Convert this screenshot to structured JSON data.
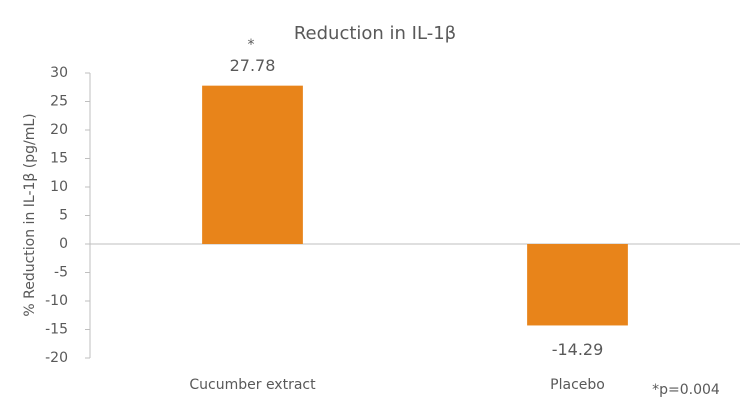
{
  "chart_data": {
    "type": "bar",
    "title": "Reduction in IL-1β",
    "y_label": "% Reduction in IL-1β (pg/mL)",
    "categories": [
      "Cucumber extract",
      "Placebo"
    ],
    "values": [
      27.78,
      -14.29
    ],
    "color": "#e8841a",
    "ylim": [
      -20,
      30
    ],
    "yticks": [
      -20,
      -15,
      -10,
      -5,
      0,
      5,
      10,
      15,
      20,
      25,
      30
    ],
    "annotations": [
      "*",
      "*p=0.004"
    ]
  }
}
